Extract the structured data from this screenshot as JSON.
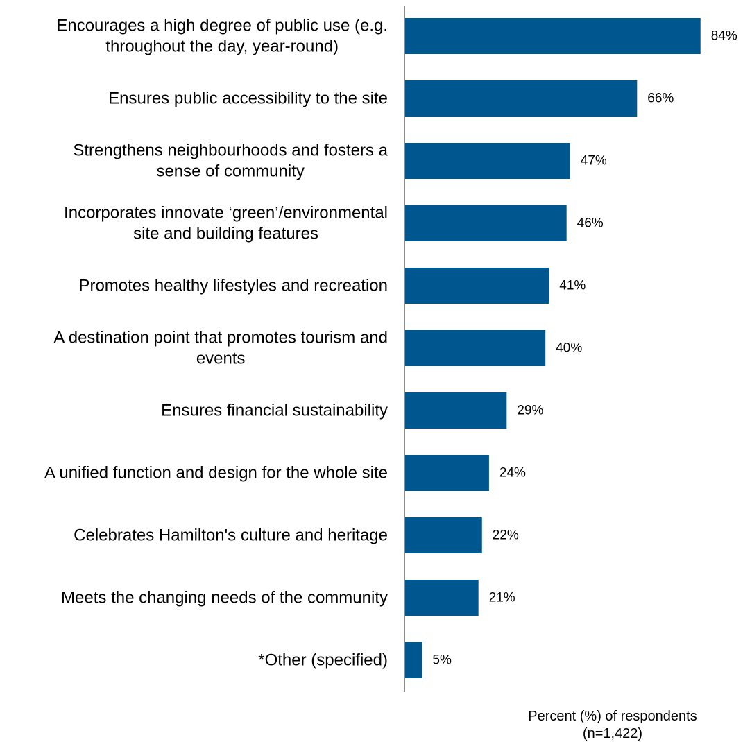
{
  "colors": {
    "bar": "#00578F",
    "axis": "#8C8C8C",
    "text": "#000000"
  },
  "chart_data": {
    "type": "bar",
    "orientation": "horizontal",
    "categories": [
      "Encourages a high degree of public use (e.g. throughout the day, year-round)",
      "Ensures public accessibility to the site",
      "Strengthens neighbourhoods and fosters a sense of community",
      "Incorporates innovate ‘green’/environmental site and building features",
      "Promotes healthy lifestyles and recreation",
      "A destination point that promotes tourism and events",
      "Ensures financial sustainability",
      "A unified function and design for the whole site",
      "Celebrates Hamilton's culture and heritage",
      "Meets the changing needs of the community",
      "*Other (specified)"
    ],
    "category_lines": [
      [
        "Encourages a high degree of public use (e.g.",
        "throughout the day, year-round)"
      ],
      [
        "Ensures public accessibility to the site"
      ],
      [
        "Strengthens neighbourhoods and fosters a",
        "sense of community"
      ],
      [
        "Incorporates innovate ‘green’/environmental",
        "site and building features"
      ],
      [
        "Promotes healthy lifestyles and recreation"
      ],
      [
        "A destination point that promotes tourism and",
        "events"
      ],
      [
        "Ensures financial sustainability"
      ],
      [
        "A unified function and design for the whole site"
      ],
      [
        "Celebrates Hamilton's culture and heritage"
      ],
      [
        "Meets the changing needs of the community"
      ],
      [
        "*Other (specified)"
      ]
    ],
    "values": [
      84,
      66,
      47,
      46,
      41,
      40,
      29,
      24,
      22,
      21,
      5
    ],
    "value_labels": [
      "84%",
      "66%",
      "47%",
      "46%",
      "41%",
      "40%",
      "29%",
      "24%",
      "22%",
      "21%",
      "5%"
    ],
    "xlabel": "Percent (%) of respondents",
    "xlabel_note": "(n=1,422)",
    "xlim": [
      0,
      100
    ],
    "grid": false,
    "legend": "none"
  }
}
